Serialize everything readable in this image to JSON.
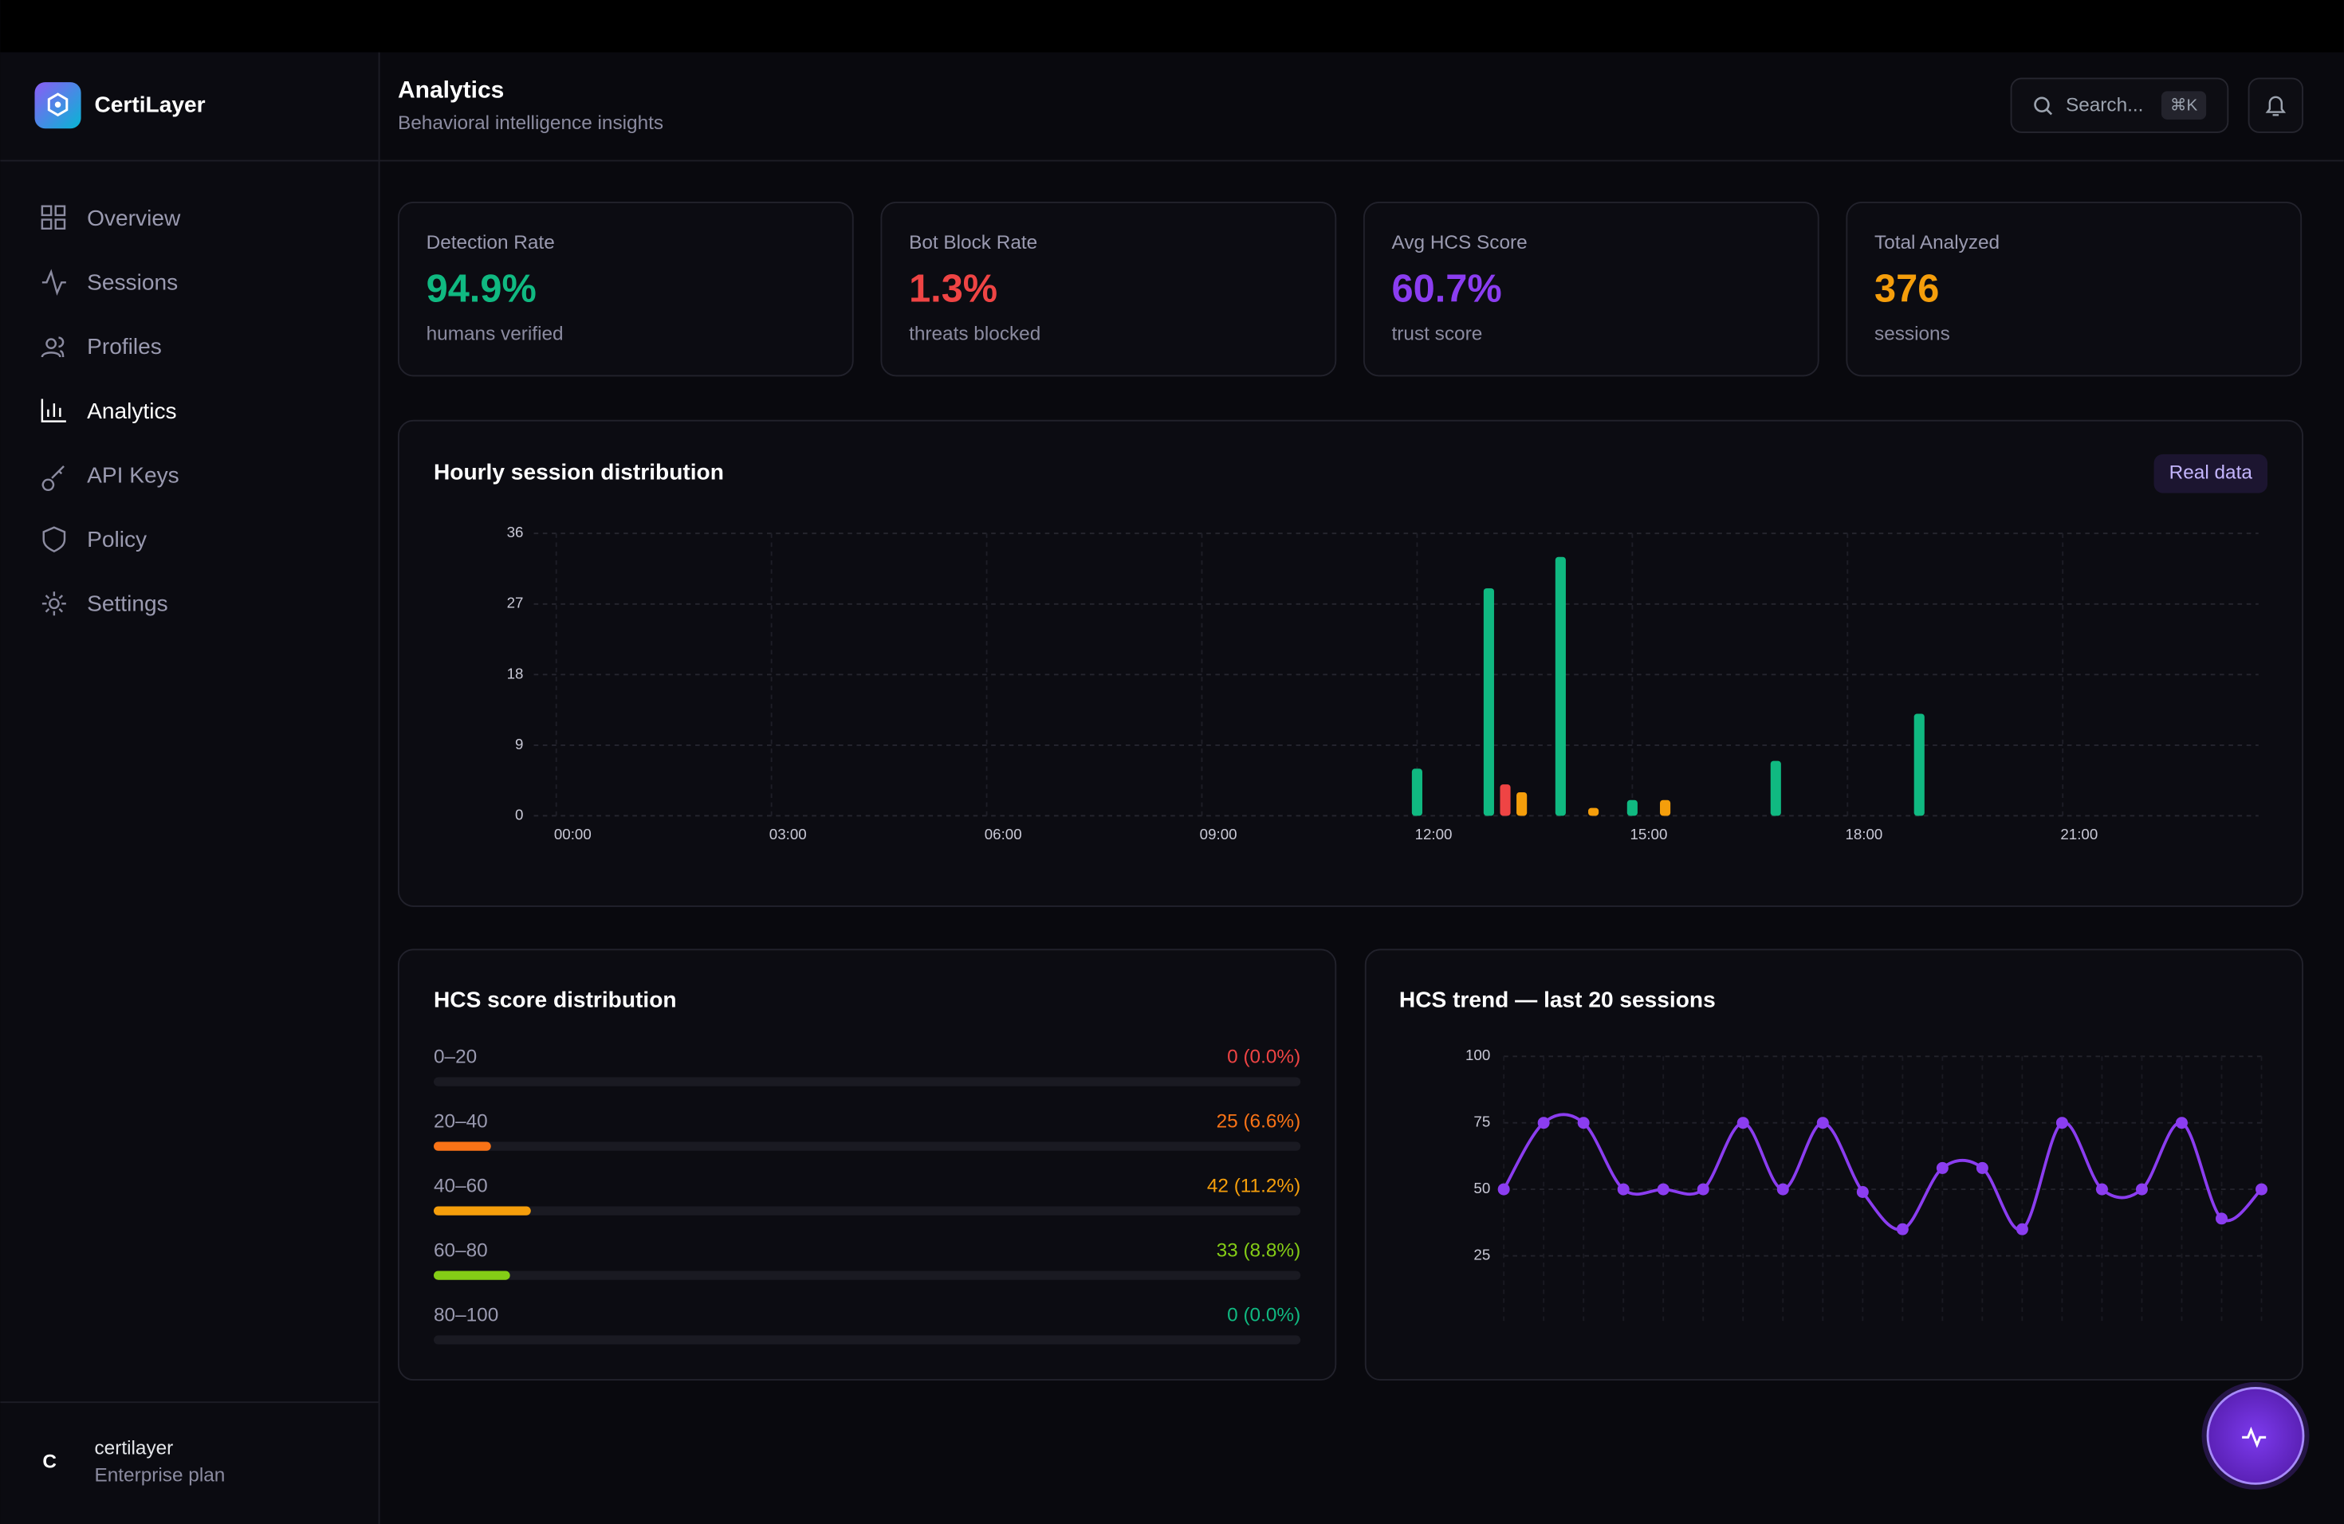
{
  "sidebar": {
    "brand": "CertiLayer",
    "nav": [
      "Overview",
      "Sessions",
      "Profiles",
      "Analytics",
      "API Keys",
      "Policy",
      "Settings"
    ],
    "active": 3,
    "user": {
      "initial": "C",
      "name": "certilayer",
      "plan": "Enterprise plan"
    }
  },
  "header": {
    "title": "Analytics",
    "subtitle": "Behavioral intelligence insights",
    "search": "Search...",
    "shortcut": "⌘K"
  },
  "stats": [
    {
      "label": "Detection Rate",
      "value": "94.9%",
      "note": "humans verified",
      "color": "#10b981"
    },
    {
      "label": "Bot Block Rate",
      "value": "1.3%",
      "note": "threats blocked",
      "color": "#ef4444"
    },
    {
      "label": "Avg HCS Score",
      "value": "60.7%",
      "note": "trust score",
      "color": "#8b3df0"
    },
    {
      "label": "Total Analyzed",
      "value": "376",
      "note": "sessions",
      "color": "#f59e0b"
    }
  ],
  "badge": "Real data",
  "chart_data": [
    {
      "type": "bar",
      "title": "Hourly session distribution",
      "categories": [
        "00:00",
        null,
        null,
        "03:00",
        null,
        null,
        "06:00",
        null,
        null,
        "09:00",
        null,
        null,
        "12:00",
        null,
        null,
        "15:00",
        null,
        null,
        "18:00",
        null,
        null,
        "21:00",
        null,
        null
      ],
      "series": [
        {
          "color": "#10b981",
          "values": [
            0,
            0,
            0,
            0,
            0,
            0,
            0,
            0,
            0,
            0,
            0,
            0,
            6,
            29,
            33,
            2,
            0,
            7,
            0,
            13,
            0,
            0,
            0,
            0
          ]
        },
        {
          "color": "#ef4444",
          "values": [
            0,
            0,
            0,
            0,
            0,
            0,
            0,
            0,
            0,
            0,
            0,
            0,
            0,
            4,
            0,
            0,
            0,
            0,
            0,
            0,
            0,
            0,
            0,
            0
          ]
        },
        {
          "color": "#f59e0b",
          "values": [
            0,
            0,
            0,
            0,
            0,
            0,
            0,
            0,
            0,
            0,
            0,
            0,
            0,
            3,
            1,
            2,
            0,
            0,
            0,
            0,
            0,
            0,
            0,
            0
          ]
        }
      ],
      "ylim": [
        0,
        36
      ],
      "yticks": [
        0,
        9,
        18,
        27,
        36
      ],
      "grid": true
    },
    {
      "type": "progress",
      "title": "HCS score distribution",
      "categories": [
        "0–20",
        "20–40",
        "40–60",
        "60–80",
        "80–100"
      ],
      "values": [
        0.0,
        6.6,
        11.2,
        8.8,
        0.0
      ],
      "value_labels": [
        "0 (0.0%)",
        "25 (6.6%)",
        "42 (11.2%)",
        "33 (8.8%)",
        "0 (0.0%)"
      ],
      "colors": [
        "#ef4444",
        "#f97316",
        "#f59e0b",
        "#84cc16",
        "#10b981"
      ],
      "xlim": [
        0,
        100
      ]
    },
    {
      "type": "line",
      "title": "HCS trend — last 20 sessions",
      "color": "#8b3df0",
      "values": [
        50,
        75,
        75,
        50,
        50,
        50,
        75,
        50,
        75,
        49,
        35,
        58,
        58,
        35,
        75,
        50,
        50,
        75,
        39,
        50
      ],
      "ylim": [
        0,
        100
      ],
      "yticks": [
        25,
        50,
        75,
        100
      ],
      "grid": true
    }
  ]
}
